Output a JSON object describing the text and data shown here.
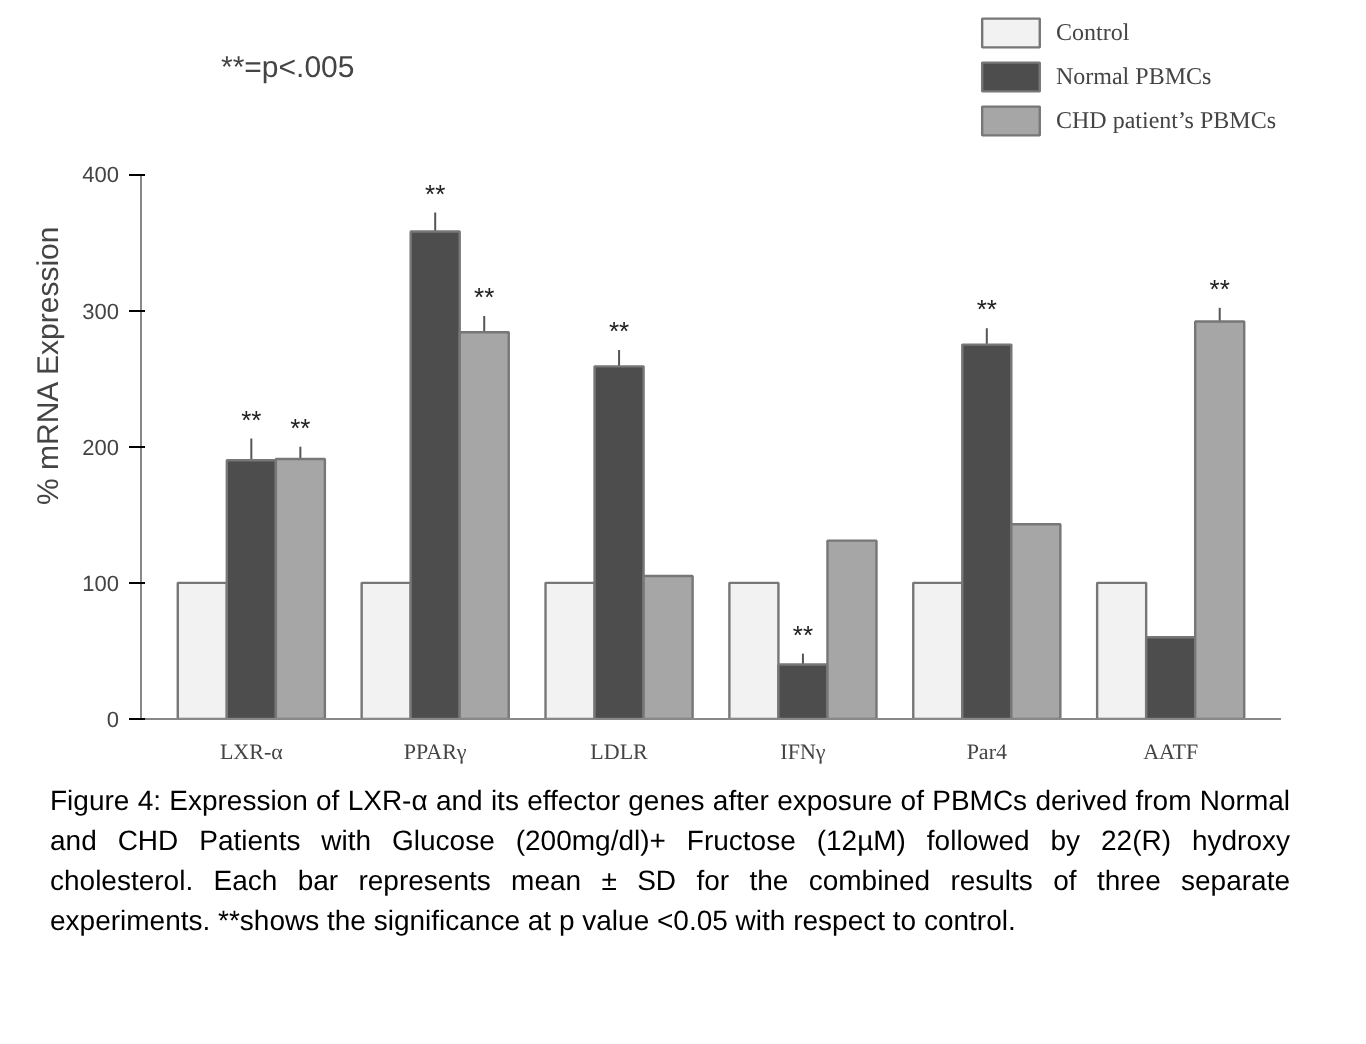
{
  "chart_data": {
    "type": "bar",
    "ylabel": "% mRNA Expression",
    "categories": [
      "LXR-α",
      "PPARγ",
      "LDLR",
      "IFNγ",
      "Par4",
      "AATF"
    ],
    "ylim": [
      0,
      400
    ],
    "yticks": [
      0,
      100,
      200,
      300,
      400
    ],
    "grid": false,
    "legend": "top right",
    "series": [
      {
        "name": "Control",
        "color": "#f2f2f2",
        "values": [
          100,
          100,
          100,
          100,
          100,
          100
        ]
      },
      {
        "name": "Normal PBMCs",
        "color": "#4d4d4d",
        "values": [
          190,
          358,
          259,
          40,
          275,
          60
        ],
        "errors": [
          16,
          14,
          12,
          8,
          12,
          null
        ],
        "value_labels": [
          "**",
          "**",
          "**",
          "**",
          "**",
          null
        ]
      },
      {
        "name": "CHD patient’s PBMCs",
        "color": "#a6a6a6",
        "values": [
          191,
          284,
          105,
          131,
          143,
          292
        ],
        "errors": [
          9,
          12,
          null,
          null,
          null,
          10
        ],
        "value_labels": [
          "**",
          "**",
          null,
          null,
          null,
          "**"
        ]
      }
    ],
    "annotations": [
      "**=p<.005",
      "Figure 4: Expression of LXR-α and its effector genes after exposure of PBMCs derived from Normal and CHD Patients with Glucose (200mg/dl)+ Fructose (12µM) followed by 22(R) hydroxy cholesterol. Each bar represents mean ± SD for the combined results of three separate experiments. **shows the significance at p value <0.05 with respect to control."
    ]
  }
}
